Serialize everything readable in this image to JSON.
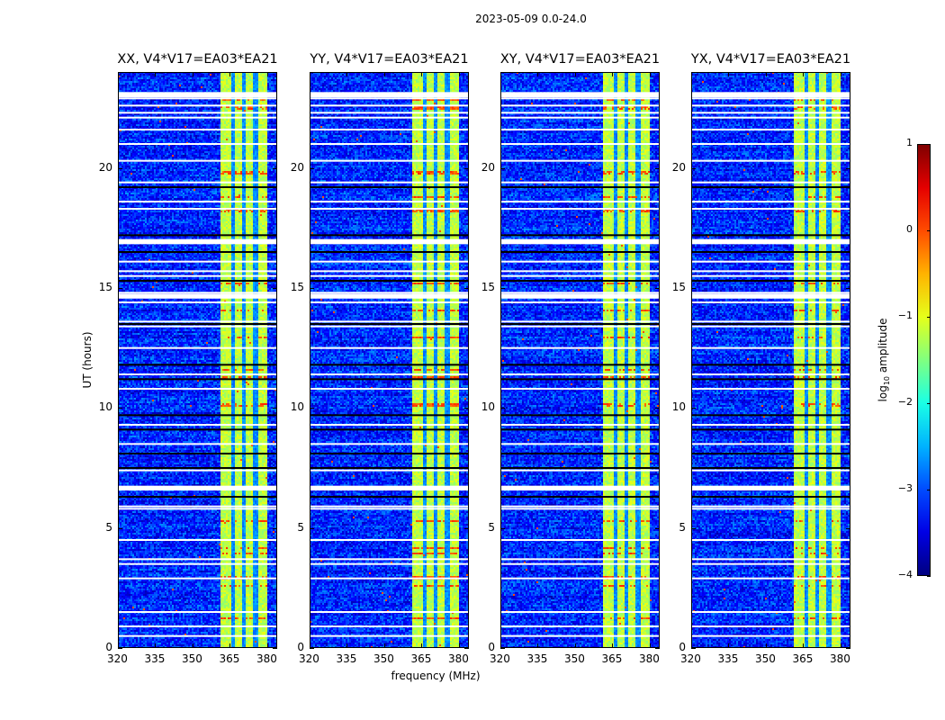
{
  "chart_data": {
    "type": "heatmap",
    "title": "2023-05-09 0.0-24.0",
    "xlabel": "frequency (MHz)",
    "ylabel": "UT (hours)",
    "xlim": [
      320,
      384
    ],
    "ylim": [
      0,
      24
    ],
    "xticks": [
      "320",
      "335",
      "350",
      "365",
      "380"
    ],
    "yticks": [
      "0",
      "5",
      "10",
      "15",
      "20"
    ],
    "panels": [
      {
        "title": "XX, V4*V17=EA03*EA21",
        "rfi_strength": 0.6
      },
      {
        "title": "YY, V4*V17=EA03*EA21",
        "rfi_strength": 0.9
      },
      {
        "title": "XY, V4*V17=EA03*EA21",
        "rfi_strength": 0.6
      },
      {
        "title": "YX, V4*V17=EA03*EA21",
        "rfi_strength": 0.4
      }
    ],
    "features": {
      "background_log_amp": -3.2,
      "rfi_band_mhz": [
        360.5,
        380
      ],
      "rfi_band_log_amp": -1.2,
      "band_gaps_mhz": [
        366,
        370.5,
        375
      ],
      "flagged_hours_white": [
        0.5,
        0.9,
        1.5,
        2.9,
        3.5,
        3.7,
        4.5,
        5.8,
        5.9,
        6.6,
        6.7,
        7.4,
        8.5,
        9.3,
        10.8,
        11.4,
        12.5,
        13.4,
        13.6,
        14.4,
        14.6,
        14.8,
        15.5,
        15.7,
        16.1,
        16.9,
        17.0,
        18.3,
        18.6,
        19.4,
        20.3,
        21.0,
        21.6,
        22.1,
        22.3,
        22.6,
        22.9,
        23.0,
        23.1
      ],
      "flagged_hours_black": [
        6.3,
        7.5,
        8.1,
        9.1,
        9.7,
        11.2,
        11.8,
        13.5,
        15.3,
        16.5,
        17.2,
        19.2
      ],
      "hot_hours": [
        1.3,
        2.6,
        3.0,
        4.0,
        4.2,
        5.3,
        10.2,
        11.3,
        11.6,
        13.0,
        14.1,
        15.2,
        18.3,
        18.8,
        19.8,
        22.5,
        22.9
      ]
    },
    "colorbar": {
      "label_main": "log",
      "label_sub": "10",
      "label_rest": " amplitude",
      "ticks": [
        "1",
        "0",
        "−1",
        "−2",
        "−3",
        "−4"
      ],
      "range": [
        -4,
        1
      ],
      "colormap": "jet"
    }
  }
}
